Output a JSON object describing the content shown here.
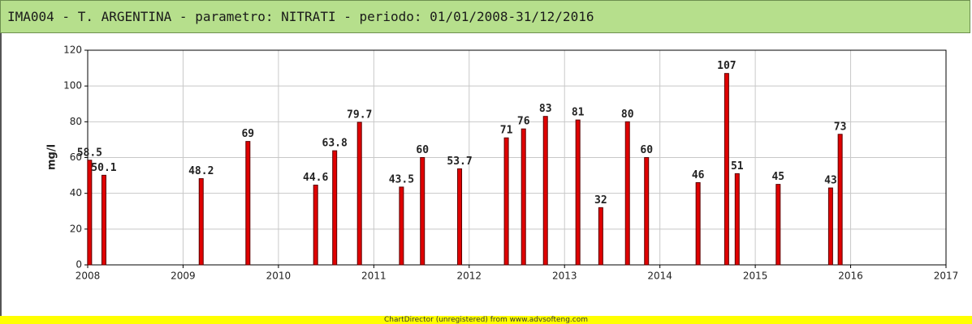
{
  "chart_data": {
    "type": "bar",
    "title": "IMA004 - T. ARGENTINA - parametro: NITRATI - periodo: 01/01/2008-31/12/2016",
    "ylabel": "mg/l",
    "x": [
      2008.02,
      2008.17,
      2009.19,
      2009.68,
      2010.39,
      2010.59,
      2010.85,
      2011.29,
      2011.51,
      2011.9,
      2012.39,
      2012.57,
      2012.8,
      2013.14,
      2013.38,
      2013.66,
      2013.86,
      2014.4,
      2014.7,
      2014.81,
      2015.24,
      2015.79,
      2015.89
    ],
    "values": [
      58.5,
      50.1,
      48.2,
      69,
      44.6,
      63.8,
      79.7,
      43.5,
      60,
      53.7,
      71,
      76,
      83,
      81,
      32,
      80,
      60,
      46,
      107,
      51,
      45,
      43,
      73
    ],
    "color": "#e00000",
    "xlim": [
      2008,
      2017
    ],
    "xticks": [
      2008,
      2009,
      2010,
      2011,
      2012,
      2013,
      2014,
      2015,
      2016,
      2017
    ],
    "ylim": [
      0,
      120
    ],
    "yticks": [
      0,
      20,
      40,
      60,
      80,
      100,
      120
    ],
    "grid": true
  },
  "footer": "ChartDirector (unregistered) from www.advsofteng.com"
}
